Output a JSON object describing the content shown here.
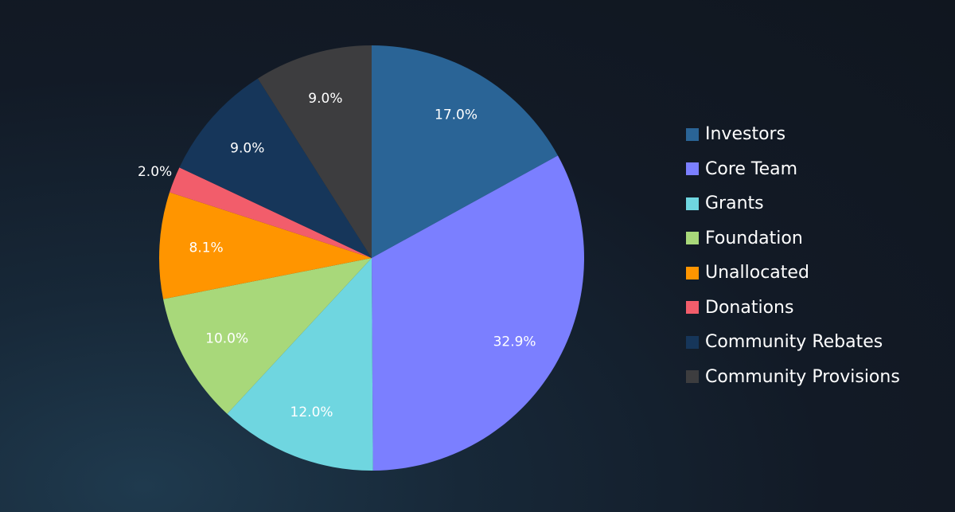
{
  "chart_data": {
    "type": "pie",
    "slices": [
      {
        "label": "Investors",
        "value": 17.0,
        "display": "17.0%",
        "color": "#2a6496"
      },
      {
        "label": "Core Team",
        "value": 32.9,
        "display": "32.9%",
        "color": "#7b7fff"
      },
      {
        "label": "Grants",
        "value": 12.0,
        "display": "12.0%",
        "color": "#6fd6e0"
      },
      {
        "label": "Foundation",
        "value": 10.0,
        "display": "10.0%",
        "color": "#a8d87a"
      },
      {
        "label": "Unallocated",
        "value": 8.1,
        "display": "8.1%",
        "color": "#ff9500"
      },
      {
        "label": "Donations",
        "value": 2.0,
        "display": "2.0%",
        "color": "#f25d6b"
      },
      {
        "label": "Community Rebates",
        "value": 9.0,
        "display": "9.0%",
        "color": "#16365a"
      },
      {
        "label": "Community Provisions",
        "value": 9.0,
        "display": "9.0%",
        "color": "#3d3d3f"
      }
    ],
    "legend_position": "right"
  }
}
